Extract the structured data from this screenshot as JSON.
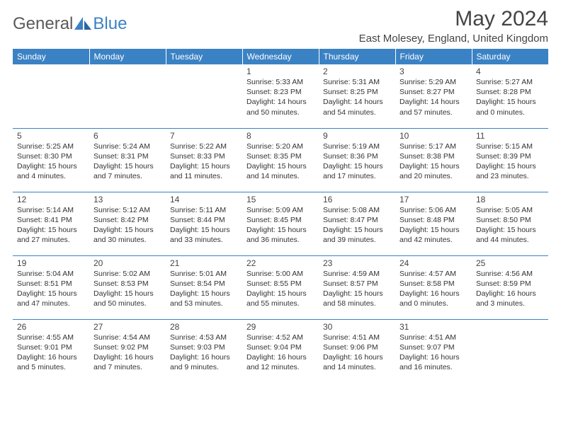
{
  "brand": {
    "part1": "General",
    "part2": "Blue"
  },
  "title": "May 2024",
  "location": "East Molesey, England, United Kingdom",
  "colors": {
    "header_bg": "#3b82c4",
    "header_text": "#ffffff",
    "cell_border": "#3b82c4",
    "text": "#333333"
  },
  "weekdays": [
    "Sunday",
    "Monday",
    "Tuesday",
    "Wednesday",
    "Thursday",
    "Friday",
    "Saturday"
  ],
  "weeks": [
    [
      null,
      null,
      null,
      {
        "n": "1",
        "sr": "5:33 AM",
        "ss": "8:23 PM",
        "dl": "14 hours and 50 minutes."
      },
      {
        "n": "2",
        "sr": "5:31 AM",
        "ss": "8:25 PM",
        "dl": "14 hours and 54 minutes."
      },
      {
        "n": "3",
        "sr": "5:29 AM",
        "ss": "8:27 PM",
        "dl": "14 hours and 57 minutes."
      },
      {
        "n": "4",
        "sr": "5:27 AM",
        "ss": "8:28 PM",
        "dl": "15 hours and 0 minutes."
      }
    ],
    [
      {
        "n": "5",
        "sr": "5:25 AM",
        "ss": "8:30 PM",
        "dl": "15 hours and 4 minutes."
      },
      {
        "n": "6",
        "sr": "5:24 AM",
        "ss": "8:31 PM",
        "dl": "15 hours and 7 minutes."
      },
      {
        "n": "7",
        "sr": "5:22 AM",
        "ss": "8:33 PM",
        "dl": "15 hours and 11 minutes."
      },
      {
        "n": "8",
        "sr": "5:20 AM",
        "ss": "8:35 PM",
        "dl": "15 hours and 14 minutes."
      },
      {
        "n": "9",
        "sr": "5:19 AM",
        "ss": "8:36 PM",
        "dl": "15 hours and 17 minutes."
      },
      {
        "n": "10",
        "sr": "5:17 AM",
        "ss": "8:38 PM",
        "dl": "15 hours and 20 minutes."
      },
      {
        "n": "11",
        "sr": "5:15 AM",
        "ss": "8:39 PM",
        "dl": "15 hours and 23 minutes."
      }
    ],
    [
      {
        "n": "12",
        "sr": "5:14 AM",
        "ss": "8:41 PM",
        "dl": "15 hours and 27 minutes."
      },
      {
        "n": "13",
        "sr": "5:12 AM",
        "ss": "8:42 PM",
        "dl": "15 hours and 30 minutes."
      },
      {
        "n": "14",
        "sr": "5:11 AM",
        "ss": "8:44 PM",
        "dl": "15 hours and 33 minutes."
      },
      {
        "n": "15",
        "sr": "5:09 AM",
        "ss": "8:45 PM",
        "dl": "15 hours and 36 minutes."
      },
      {
        "n": "16",
        "sr": "5:08 AM",
        "ss": "8:47 PM",
        "dl": "15 hours and 39 minutes."
      },
      {
        "n": "17",
        "sr": "5:06 AM",
        "ss": "8:48 PM",
        "dl": "15 hours and 42 minutes."
      },
      {
        "n": "18",
        "sr": "5:05 AM",
        "ss": "8:50 PM",
        "dl": "15 hours and 44 minutes."
      }
    ],
    [
      {
        "n": "19",
        "sr": "5:04 AM",
        "ss": "8:51 PM",
        "dl": "15 hours and 47 minutes."
      },
      {
        "n": "20",
        "sr": "5:02 AM",
        "ss": "8:53 PM",
        "dl": "15 hours and 50 minutes."
      },
      {
        "n": "21",
        "sr": "5:01 AM",
        "ss": "8:54 PM",
        "dl": "15 hours and 53 minutes."
      },
      {
        "n": "22",
        "sr": "5:00 AM",
        "ss": "8:55 PM",
        "dl": "15 hours and 55 minutes."
      },
      {
        "n": "23",
        "sr": "4:59 AM",
        "ss": "8:57 PM",
        "dl": "15 hours and 58 minutes."
      },
      {
        "n": "24",
        "sr": "4:57 AM",
        "ss": "8:58 PM",
        "dl": "16 hours and 0 minutes."
      },
      {
        "n": "25",
        "sr": "4:56 AM",
        "ss": "8:59 PM",
        "dl": "16 hours and 3 minutes."
      }
    ],
    [
      {
        "n": "26",
        "sr": "4:55 AM",
        "ss": "9:01 PM",
        "dl": "16 hours and 5 minutes."
      },
      {
        "n": "27",
        "sr": "4:54 AM",
        "ss": "9:02 PM",
        "dl": "16 hours and 7 minutes."
      },
      {
        "n": "28",
        "sr": "4:53 AM",
        "ss": "9:03 PM",
        "dl": "16 hours and 9 minutes."
      },
      {
        "n": "29",
        "sr": "4:52 AM",
        "ss": "9:04 PM",
        "dl": "16 hours and 12 minutes."
      },
      {
        "n": "30",
        "sr": "4:51 AM",
        "ss": "9:06 PM",
        "dl": "16 hours and 14 minutes."
      },
      {
        "n": "31",
        "sr": "4:51 AM",
        "ss": "9:07 PM",
        "dl": "16 hours and 16 minutes."
      },
      null
    ]
  ],
  "labels": {
    "sunrise": "Sunrise:",
    "sunset": "Sunset:",
    "daylight": "Daylight:"
  }
}
